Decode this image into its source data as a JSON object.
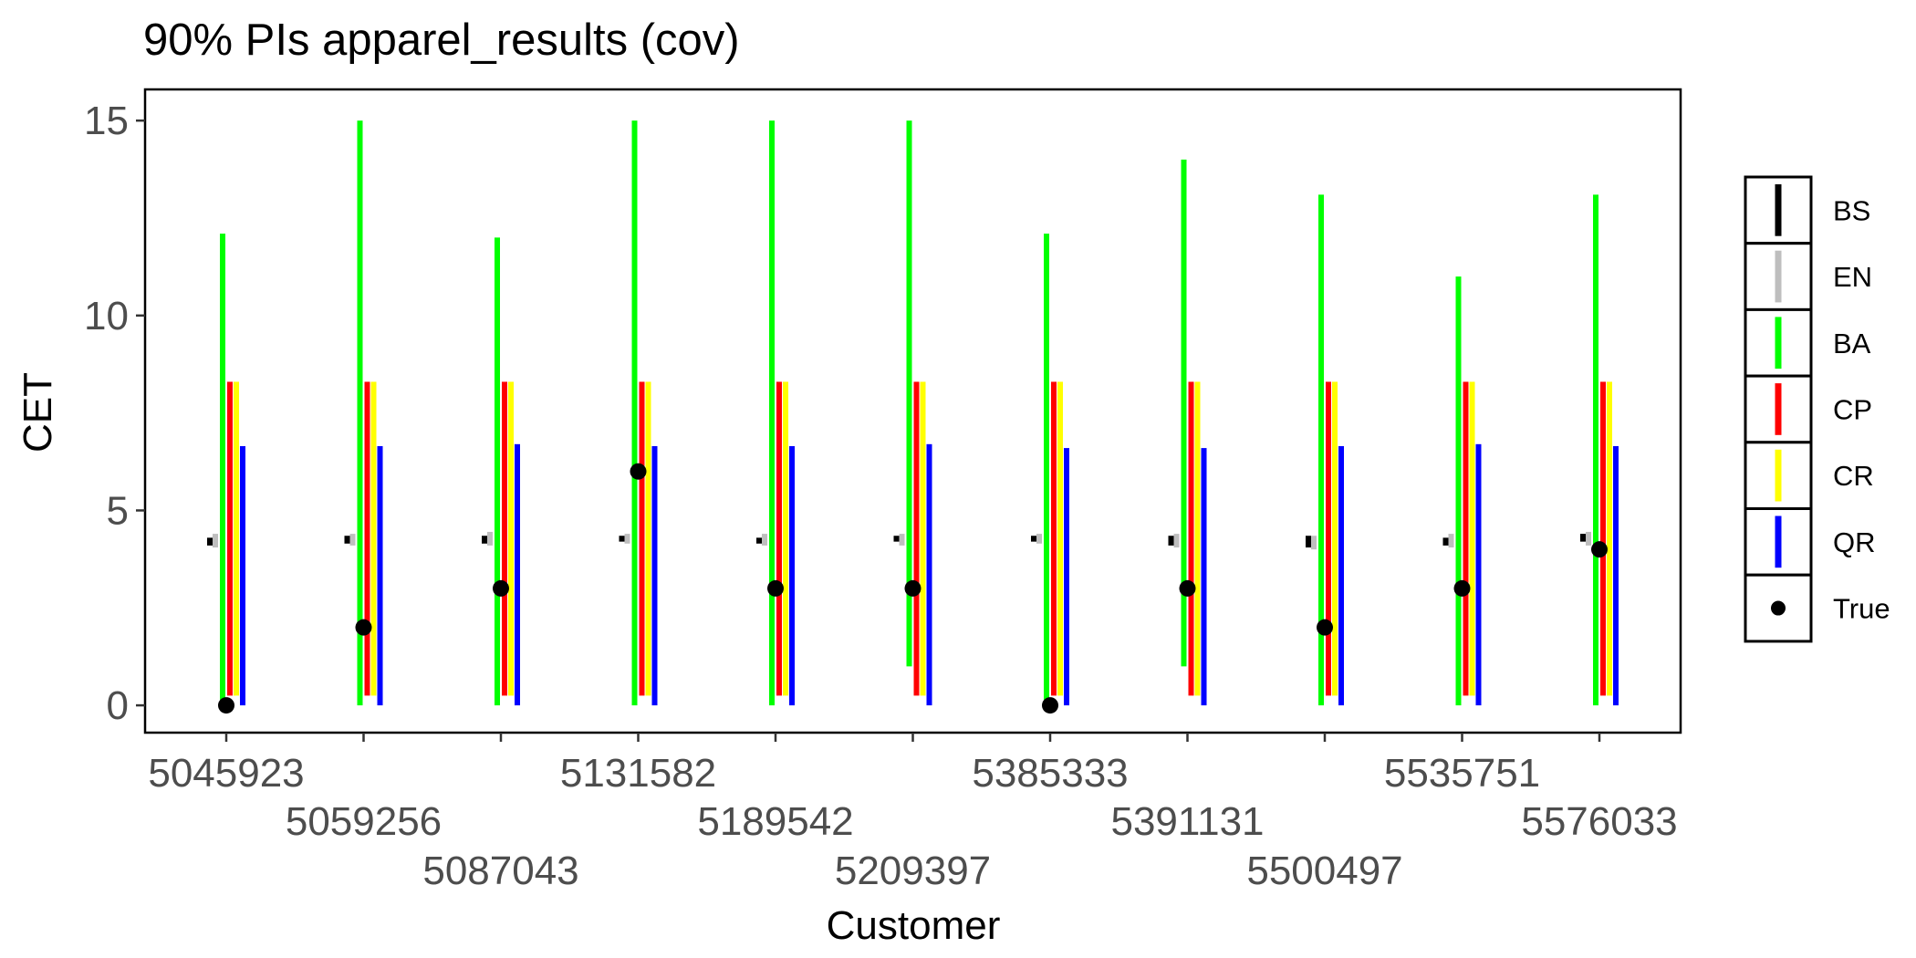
{
  "chart_data": {
    "type": "interval",
    "title": "90% PIs apparel_results (cov)",
    "xlabel": "Customer",
    "ylabel": "CET",
    "ylim": [
      -0.7,
      15.8
    ],
    "yticks": [
      0,
      5,
      10,
      15
    ],
    "grid": false,
    "legend_position": "right",
    "categories": [
      "5045923",
      "5059256",
      "5087043",
      "5131582",
      "5189542",
      "5209397",
      "5385333",
      "5391131",
      "5500497",
      "5535751",
      "5576033"
    ],
    "series": [
      {
        "name": "BS",
        "color": "#000000",
        "lower": [
          4.1,
          4.15,
          4.15,
          4.2,
          4.15,
          4.2,
          4.2,
          4.1,
          4.05,
          4.1,
          4.2
        ],
        "upper": [
          4.3,
          4.35,
          4.35,
          4.35,
          4.3,
          4.35,
          4.35,
          4.35,
          4.35,
          4.3,
          4.4
        ]
      },
      {
        "name": "EN",
        "color": "#bebebe",
        "lower": [
          4.05,
          4.1,
          4.1,
          4.15,
          4.1,
          4.1,
          4.15,
          4.05,
          4.0,
          4.05,
          4.1
        ],
        "upper": [
          4.4,
          4.4,
          4.45,
          4.4,
          4.4,
          4.4,
          4.4,
          4.4,
          4.35,
          4.4,
          4.45
        ]
      },
      {
        "name": "BA",
        "color": "#00ff00",
        "lower": [
          0,
          0,
          0,
          0,
          0,
          1.0,
          0,
          1.0,
          0,
          0,
          0
        ],
        "upper": [
          12.1,
          15.0,
          12.0,
          15.0,
          15.0,
          15.0,
          12.1,
          14.0,
          13.1,
          11.0,
          13.1
        ]
      },
      {
        "name": "CP",
        "color": "#ff0000",
        "lower": [
          0.25,
          0.25,
          0.25,
          0.25,
          0.25,
          0.25,
          0.25,
          0.25,
          0.25,
          0.25,
          0.25
        ],
        "upper": [
          8.3,
          8.3,
          8.3,
          8.3,
          8.3,
          8.3,
          8.3,
          8.3,
          8.3,
          8.3,
          8.3
        ]
      },
      {
        "name": "CR",
        "color": "#ffff00",
        "lower": [
          0.25,
          0.25,
          0.25,
          0.25,
          0.25,
          0.25,
          0.25,
          0.25,
          0.25,
          0.25,
          0.25
        ],
        "upper": [
          8.3,
          8.3,
          8.3,
          8.3,
          8.3,
          8.3,
          8.3,
          8.3,
          8.3,
          8.3,
          8.3
        ]
      },
      {
        "name": "QR",
        "color": "#0000ff",
        "lower": [
          0,
          0,
          0,
          0,
          0,
          0,
          0,
          0,
          0,
          0,
          0
        ],
        "upper": [
          6.65,
          6.65,
          6.7,
          6.65,
          6.65,
          6.7,
          6.6,
          6.6,
          6.65,
          6.7,
          6.65
        ]
      }
    ],
    "true_values": {
      "name": "True",
      "color": "#000000",
      "values": [
        0,
        2,
        3,
        6,
        3,
        3,
        0,
        3,
        2,
        3,
        4
      ]
    }
  }
}
